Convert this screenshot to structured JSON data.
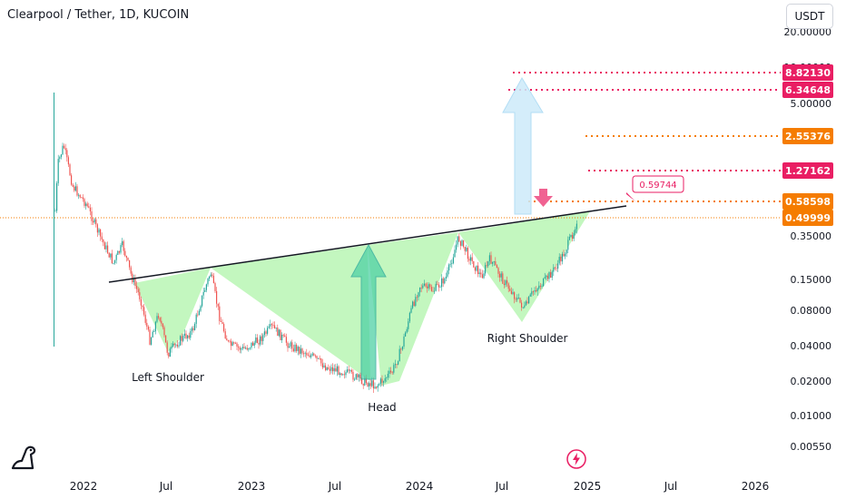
{
  "header": {
    "title": "Clearpool / Tether, 1D, KUCOIN",
    "currency_button": "USDT"
  },
  "chart_data": {
    "type": "candlestick",
    "title": "Clearpool / Tether, 1D, KUCOIN",
    "y_scale": "log",
    "y_tick_labels": [
      "20.00000",
      "10.00000",
      "5.00000",
      "0.35000",
      "0.15000",
      "0.08000",
      "0.04000",
      "0.02000",
      "0.01000",
      "0.00550"
    ],
    "x_tick_labels": [
      "2022",
      "Jul",
      "2023",
      "Jul",
      "2024",
      "Jul",
      "2025",
      "Jul",
      "2026"
    ],
    "price_levels": [
      {
        "value": "8.82130",
        "color": "#e91e63"
      },
      {
        "value": "6.34648",
        "color": "#e91e63"
      },
      {
        "value": "2.55376",
        "color": "#f57c00"
      },
      {
        "value": "1.27162",
        "color": "#e91e63"
      },
      {
        "value": "0.58598",
        "color": "#f57c00"
      },
      {
        "value": "0.49999",
        "color": "#f57c00"
      }
    ],
    "target_label": "0.59744",
    "annotations": [
      "Left Shoulder",
      "Head",
      "Right Shoulder"
    ],
    "pattern": "inverse head and shoulders",
    "colors": {
      "up": "#26a69a",
      "down": "#ef5350",
      "pattern_fill": "#b9f6b4",
      "neckline": "#131722"
    }
  }
}
